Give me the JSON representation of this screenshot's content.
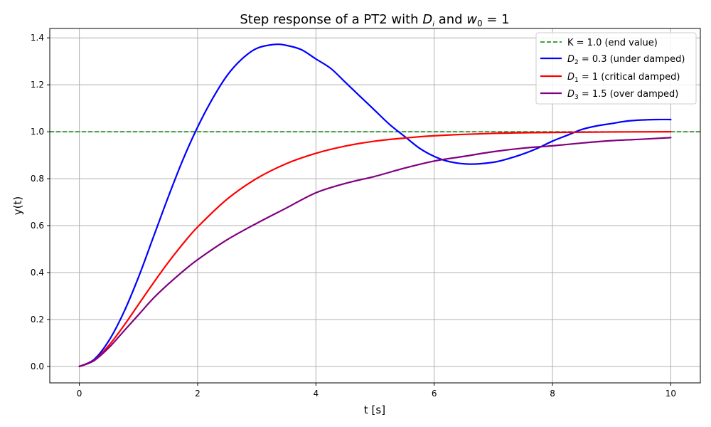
{
  "chart_data": {
    "type": "line",
    "title": {
      "prefix": "Step response of a PT2 with ",
      "d_sym": "D",
      "d_sub": "i",
      "mid": " and  ",
      "w_sym": "w",
      "w_sub": "0",
      "suffix": " = 1"
    },
    "xlabel": "t [s]",
    "ylabel": "y(t)",
    "xlim": [
      -0.5,
      10.5
    ],
    "ylim": [
      -0.07,
      1.44
    ],
    "xticks": [
      0,
      2,
      4,
      6,
      8,
      10
    ],
    "yticks": [
      0.0,
      0.2,
      0.4,
      0.6,
      0.8,
      1.0,
      1.2,
      1.4
    ],
    "grid": true,
    "legend_position": "top-right",
    "reference_line": {
      "y": 1.0,
      "color": "#008000",
      "style": "dashed",
      "legend_text": "K = 1.0 (end value)"
    },
    "series": [
      {
        "color": "#0000ff",
        "legend_sym": "D",
        "legend_sub": "2",
        "legend_text": " = 0.3 (under damped)",
        "points": [
          [
            0,
            0
          ],
          [
            0.25,
            0.03
          ],
          [
            0.5,
            0.11
          ],
          [
            0.75,
            0.23
          ],
          [
            1,
            0.38
          ],
          [
            1.25,
            0.55
          ],
          [
            1.5,
            0.72
          ],
          [
            1.75,
            0.88
          ],
          [
            2,
            1.02
          ],
          [
            2.25,
            1.14
          ],
          [
            2.5,
            1.24
          ],
          [
            2.75,
            1.31
          ],
          [
            3,
            1.355
          ],
          [
            3.3,
            1.372
          ],
          [
            3.5,
            1.368
          ],
          [
            3.75,
            1.35
          ],
          [
            4,
            1.31
          ],
          [
            4.25,
            1.27
          ],
          [
            4.5,
            1.21
          ],
          [
            4.75,
            1.15
          ],
          [
            5,
            1.09
          ],
          [
            5.25,
            1.03
          ],
          [
            5.5,
            0.98
          ],
          [
            5.75,
            0.93
          ],
          [
            6,
            0.895
          ],
          [
            6.25,
            0.873
          ],
          [
            6.6,
            0.862
          ],
          [
            7,
            0.87
          ],
          [
            7.25,
            0.885
          ],
          [
            7.5,
            0.905
          ],
          [
            7.75,
            0.93
          ],
          [
            8,
            0.96
          ],
          [
            8.25,
            0.985
          ],
          [
            8.5,
            1.01
          ],
          [
            8.75,
            1.025
          ],
          [
            9,
            1.035
          ],
          [
            9.25,
            1.045
          ],
          [
            9.5,
            1.05
          ],
          [
            9.75,
            1.052
          ],
          [
            10,
            1.052
          ]
        ]
      },
      {
        "color": "#ff0000",
        "legend_sym": "D",
        "legend_sub": "1",
        "legend_text": " = 1 (critical damped)",
        "points": [
          [
            0,
            0
          ],
          [
            0.25,
            0.026
          ],
          [
            0.5,
            0.09
          ],
          [
            0.75,
            0.173
          ],
          [
            1,
            0.264
          ],
          [
            1.25,
            0.355
          ],
          [
            1.5,
            0.442
          ],
          [
            1.75,
            0.522
          ],
          [
            2,
            0.594
          ],
          [
            2.5,
            0.713
          ],
          [
            3,
            0.801
          ],
          [
            3.5,
            0.864
          ],
          [
            4,
            0.908
          ],
          [
            4.5,
            0.939
          ],
          [
            5,
            0.96
          ],
          [
            5.5,
            0.973
          ],
          [
            6,
            0.983
          ],
          [
            7,
            0.993
          ],
          [
            8,
            0.997
          ],
          [
            9,
            0.999
          ],
          [
            10,
            1.0
          ]
        ]
      },
      {
        "color": "#800080",
        "legend_sym": "D",
        "legend_sub": "3",
        "legend_text": " = 1.5  (over damped)",
        "points": [
          [
            0,
            0
          ],
          [
            0.25,
            0.025
          ],
          [
            0.5,
            0.08
          ],
          [
            0.75,
            0.15
          ],
          [
            1,
            0.22
          ],
          [
            1.25,
            0.29
          ],
          [
            1.5,
            0.35
          ],
          [
            1.75,
            0.405
          ],
          [
            2,
            0.455
          ],
          [
            2.5,
            0.54
          ],
          [
            3,
            0.61
          ],
          [
            3.5,
            0.675
          ],
          [
            4,
            0.74
          ],
          [
            4.5,
            0.78
          ],
          [
            5,
            0.81
          ],
          [
            5.5,
            0.845
          ],
          [
            6,
            0.875
          ],
          [
            6.5,
            0.895
          ],
          [
            7,
            0.915
          ],
          [
            7.5,
            0.93
          ],
          [
            8,
            0.94
          ],
          [
            8.5,
            0.952
          ],
          [
            9,
            0.962
          ],
          [
            9.5,
            0.968
          ],
          [
            10,
            0.975
          ]
        ]
      }
    ]
  }
}
